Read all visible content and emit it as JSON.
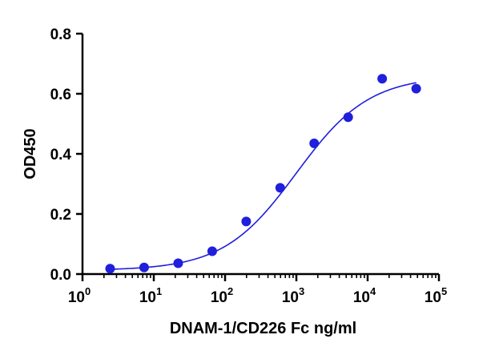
{
  "chart_data": {
    "type": "scatter",
    "title": "",
    "xlabel": "DNAM-1/CD226 Fc ng/ml",
    "ylabel": "OD450",
    "x_scale": "log10",
    "xlim": [
      1,
      100000
    ],
    "ylim": [
      0,
      0.8
    ],
    "x_ticks": [
      {
        "base": "10",
        "exp": "0"
      },
      {
        "base": "10",
        "exp": "1"
      },
      {
        "base": "10",
        "exp": "2"
      },
      {
        "base": "10",
        "exp": "3"
      },
      {
        "base": "10",
        "exp": "4"
      },
      {
        "base": "10",
        "exp": "5"
      }
    ],
    "y_ticks": [
      "0.0",
      "0.2",
      "0.4",
      "0.6",
      "0.8"
    ],
    "grid": false,
    "legend": "none",
    "marker_color": "#1f1fdc",
    "line_color": "#1f1fdc",
    "series": [
      {
        "x": [
          2.44,
          7.32,
          22,
          66,
          198,
          593,
          1778,
          5333,
          16000,
          48000
        ],
        "y": [
          0.018,
          0.022,
          0.036,
          0.076,
          0.175,
          0.287,
          0.435,
          0.522,
          0.65,
          0.617
        ]
      }
    ],
    "fit": {
      "model": "4PL",
      "bottom": 0.012,
      "top": 0.66,
      "ec50": 1000,
      "hill": 0.85
    }
  }
}
